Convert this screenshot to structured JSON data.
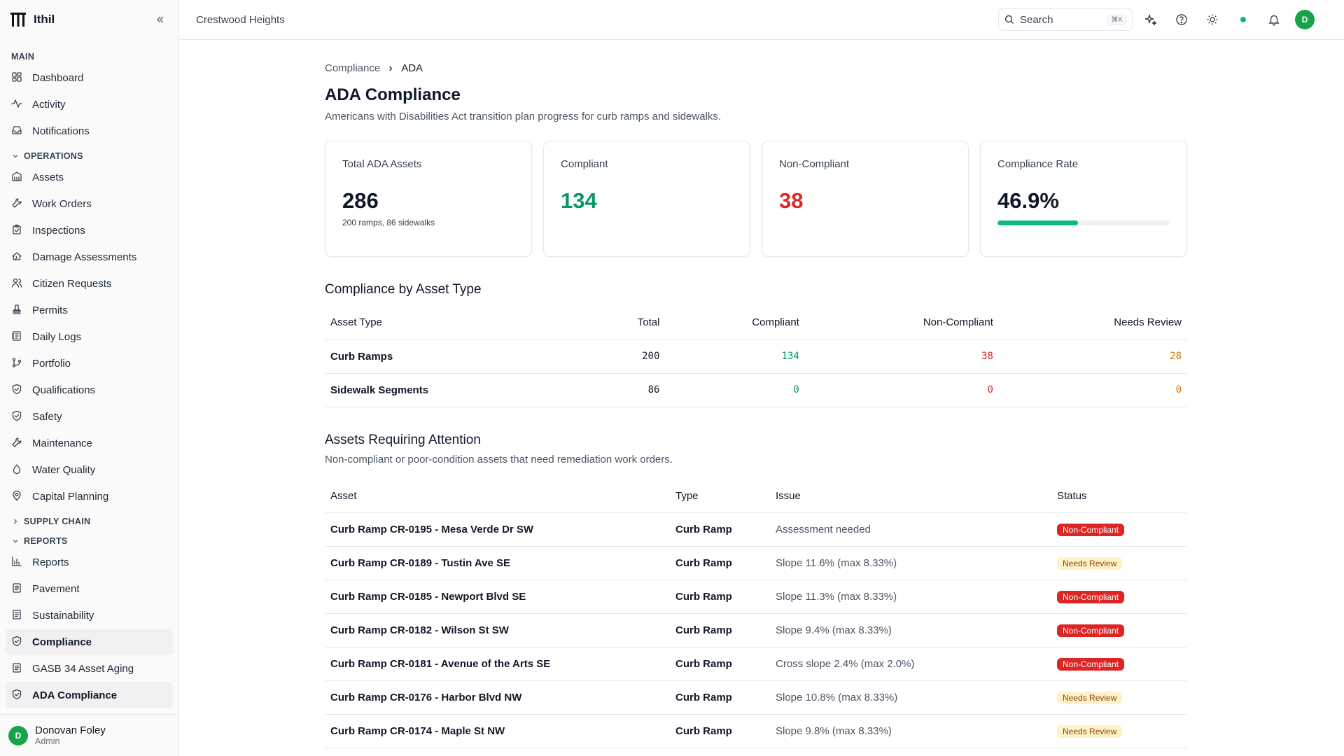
{
  "app": {
    "name": "Ithil",
    "org": "Crestwood Heights"
  },
  "search": {
    "placeholder": "Search",
    "shortcut": "⌘K"
  },
  "sidebar": {
    "main_label": "MAIN",
    "main_items": [
      {
        "label": "Dashboard",
        "icon": "grid-icon"
      },
      {
        "label": "Activity",
        "icon": "activity-icon"
      },
      {
        "label": "Notifications",
        "icon": "inbox-icon"
      }
    ],
    "operations_label": "OPERATIONS",
    "operations_items": [
      {
        "label": "Assets",
        "icon": "building-icon"
      },
      {
        "label": "Work Orders",
        "icon": "wrench-icon"
      },
      {
        "label": "Inspections",
        "icon": "clipboard-check-icon"
      },
      {
        "label": "Damage Assessments",
        "icon": "house-damage-icon"
      },
      {
        "label": "Citizen Requests",
        "icon": "users-icon"
      },
      {
        "label": "Permits",
        "icon": "stamp-icon"
      },
      {
        "label": "Daily Logs",
        "icon": "notebook-icon"
      },
      {
        "label": "Portfolio",
        "icon": "git-branch-icon"
      },
      {
        "label": "Qualifications",
        "icon": "shield-check-icon"
      },
      {
        "label": "Safety",
        "icon": "shield-check-icon"
      },
      {
        "label": "Maintenance",
        "icon": "wrench-icon"
      },
      {
        "label": "Water Quality",
        "icon": "droplet-icon"
      },
      {
        "label": "Capital Planning",
        "icon": "map-pin-icon"
      }
    ],
    "supply_chain_label": "SUPPLY CHAIN",
    "reports_label": "REPORTS",
    "reports_items": [
      {
        "label": "Reports",
        "icon": "bar-chart-icon"
      },
      {
        "label": "Pavement",
        "icon": "document-icon"
      },
      {
        "label": "Sustainability",
        "icon": "document-icon"
      },
      {
        "label": "Compliance",
        "icon": "shield-check-icon"
      },
      {
        "label": "GASB 34 Asset Aging",
        "icon": "document-icon"
      },
      {
        "label": "ADA Compliance",
        "icon": "shield-check-icon"
      }
    ],
    "user": {
      "initial": "D",
      "name": "Donovan Foley",
      "role": "Admin"
    }
  },
  "header": {
    "avatar_initial": "D"
  },
  "breadcrumb": {
    "parent": "Compliance",
    "current": "ADA"
  },
  "page": {
    "title": "ADA Compliance",
    "subtitle": "Americans with Disabilities Act transition plan progress for curb ramps and sidewalks."
  },
  "cards": {
    "total": {
      "label": "Total ADA Assets",
      "value": "286",
      "note": "200 ramps, 86 sidewalks"
    },
    "compliant": {
      "label": "Compliant",
      "value": "134"
    },
    "non_compliant": {
      "label": "Non-Compliant",
      "value": "38"
    },
    "rate": {
      "label": "Compliance Rate",
      "value": "46.9%",
      "progress_fraction": 0.469
    }
  },
  "by_type": {
    "title": "Compliance by Asset Type",
    "columns": [
      "Asset Type",
      "Total",
      "Compliant",
      "Non-Compliant",
      "Needs Review"
    ],
    "rows": [
      {
        "type": "Curb Ramps",
        "total": "200",
        "compliant": "134",
        "non_compliant": "38",
        "needs_review": "28"
      },
      {
        "type": "Sidewalk Segments",
        "total": "86",
        "compliant": "0",
        "non_compliant": "0",
        "needs_review": "0"
      }
    ]
  },
  "attention": {
    "title": "Assets Requiring Attention",
    "subtitle": "Non-compliant or poor-condition assets that need remediation work orders.",
    "columns": [
      "Asset",
      "Type",
      "Issue",
      "Status"
    ],
    "rows": [
      {
        "asset": "Curb Ramp CR-0195 - Mesa Verde Dr SW",
        "type": "Curb Ramp",
        "issue": "Assessment needed",
        "status": "Non-Compliant"
      },
      {
        "asset": "Curb Ramp CR-0189 - Tustin Ave SE",
        "type": "Curb Ramp",
        "issue": "Slope 11.6% (max 8.33%)",
        "status": "Needs Review"
      },
      {
        "asset": "Curb Ramp CR-0185 - Newport Blvd SE",
        "type": "Curb Ramp",
        "issue": "Slope 11.3% (max 8.33%)",
        "status": "Non-Compliant"
      },
      {
        "asset": "Curb Ramp CR-0182 - Wilson St SW",
        "type": "Curb Ramp",
        "issue": "Slope 9.4% (max 8.33%)",
        "status": "Non-Compliant"
      },
      {
        "asset": "Curb Ramp CR-0181 - Avenue of the Arts SE",
        "type": "Curb Ramp",
        "issue": "Cross slope 2.4% (max 2.0%)",
        "status": "Non-Compliant"
      },
      {
        "asset": "Curb Ramp CR-0176 - Harbor Blvd NW",
        "type": "Curb Ramp",
        "issue": "Slope 10.8% (max 8.33%)",
        "status": "Needs Review"
      },
      {
        "asset": "Curb Ramp CR-0174 - Maple St NW",
        "type": "Curb Ramp",
        "issue": "Slope 9.8% (max 8.33%)",
        "status": "Needs Review"
      }
    ]
  },
  "colors": {
    "accent_green": "#10b981",
    "danger": "#dc2626",
    "warning_bg": "#fef3c7"
  }
}
